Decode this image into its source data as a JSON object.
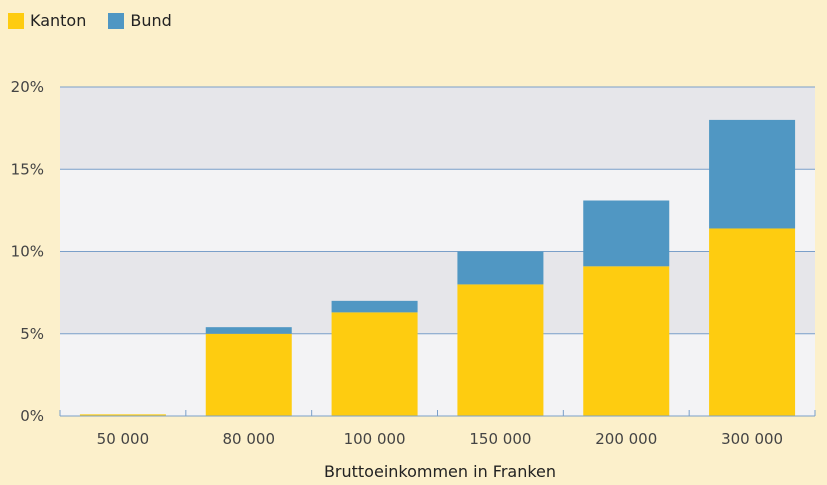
{
  "chart_data": {
    "type": "bar",
    "stacked": true,
    "categories": [
      "50 000",
      "80 000",
      "100 000",
      "150 000",
      "200 000",
      "300 000"
    ],
    "series": [
      {
        "name": "Kanton",
        "color": "#fecc10",
        "values": [
          0.1,
          5.0,
          6.3,
          8.0,
          9.1,
          11.4
        ]
      },
      {
        "name": "Bund",
        "color": "#5097c3",
        "values": [
          0.0,
          0.4,
          0.7,
          2.0,
          4.0,
          6.6
        ]
      }
    ],
    "xlabel": "Bruttoeinkommen in Franken",
    "ylabel": "",
    "ylim": [
      0,
      20
    ],
    "yticks": [
      0,
      5,
      10,
      15,
      20
    ],
    "ytick_labels": [
      "0%",
      "5%",
      "10%",
      "15%",
      "20%"
    ],
    "grid": true,
    "legend_position": "top-left"
  }
}
